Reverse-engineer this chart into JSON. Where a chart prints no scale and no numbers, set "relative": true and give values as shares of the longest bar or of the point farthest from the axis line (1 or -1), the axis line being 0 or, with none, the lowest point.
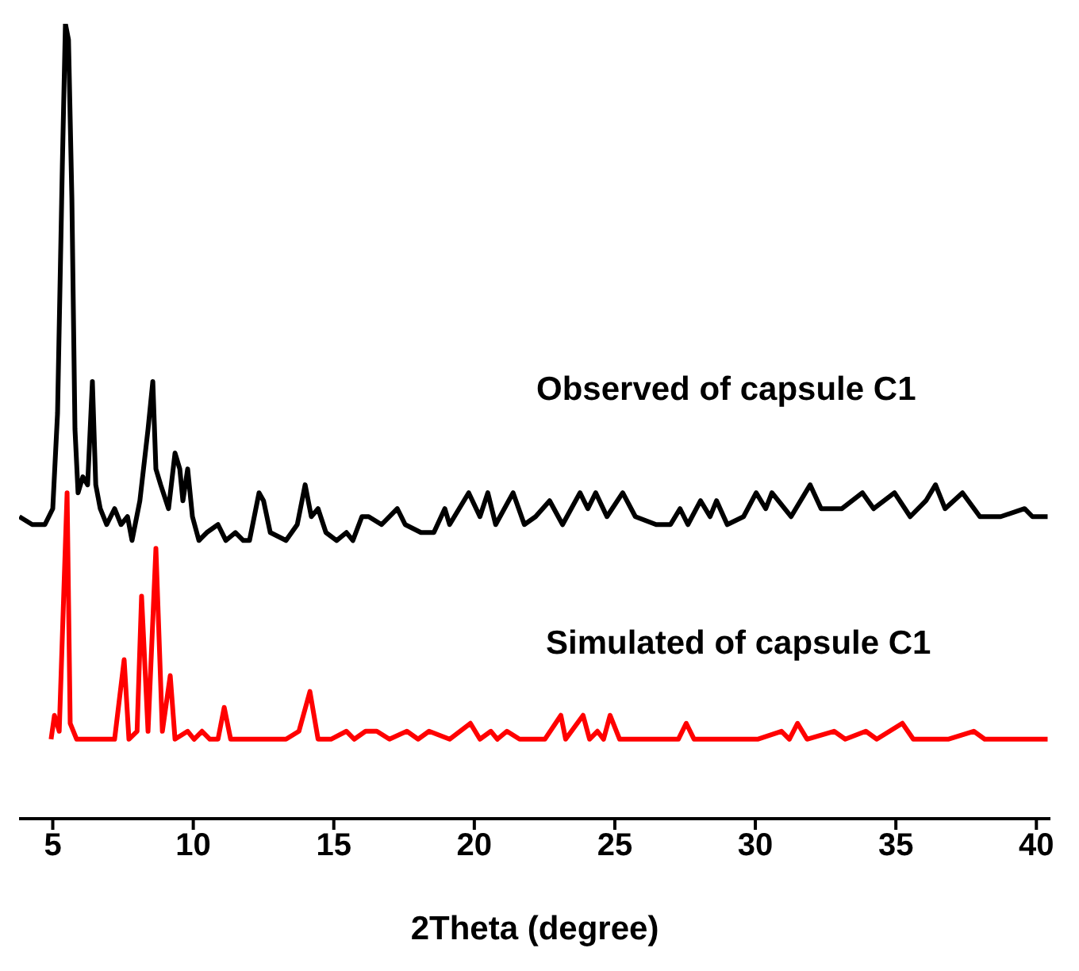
{
  "chart_data": {
    "type": "line",
    "relative": true,
    "xlabel": "2Theta (degree)",
    "xlim": [
      3.8,
      40.5
    ],
    "xticks": [
      5,
      10,
      15,
      20,
      25,
      30,
      35,
      40
    ],
    "marker": "none",
    "line_style": "solid",
    "series": [
      {
        "name": "Observed of capsule C1",
        "color": "#000000",
        "x": [
          3.81,
          4.27,
          4.72,
          5.0,
          5.17,
          5.34,
          5.45,
          5.56,
          5.68,
          5.79,
          5.9,
          6.07,
          6.24,
          6.41,
          6.53,
          6.69,
          6.92,
          7.2,
          7.43,
          7.66,
          7.82,
          8.1,
          8.39,
          8.56,
          8.67,
          8.84,
          9.12,
          9.35,
          9.52,
          9.63,
          9.8,
          9.97,
          10.2,
          10.48,
          10.88,
          11.16,
          11.5,
          11.78,
          12.0,
          12.34,
          12.5,
          12.74,
          13.3,
          13.7,
          13.98,
          14.2,
          14.44,
          14.72,
          15.1,
          15.45,
          15.68,
          16.0,
          16.24,
          16.7,
          17.26,
          17.54,
          18.1,
          18.56,
          18.95,
          19.12,
          19.8,
          20.2,
          20.48,
          20.76,
          21.38,
          21.78,
          22.18,
          22.68,
          23.14,
          23.76,
          24.04,
          24.32,
          24.72,
          25.28,
          25.73,
          26.47,
          26.98,
          27.32,
          27.6,
          28.05,
          28.39,
          28.62,
          29.0,
          29.58,
          30.03,
          30.37,
          30.59,
          31.27,
          31.95,
          32.34,
          33.08,
          33.81,
          34.21,
          34.95,
          35.51,
          36.07,
          36.41,
          36.75,
          37.37,
          37.99,
          38.73,
          39.58,
          39.86,
          40.4
        ],
        "values": [
          0.38,
          0.37,
          0.37,
          0.39,
          0.51,
          0.82,
          1.0,
          0.98,
          0.78,
          0.49,
          0.41,
          0.43,
          0.42,
          0.55,
          0.42,
          0.39,
          0.37,
          0.39,
          0.37,
          0.38,
          0.35,
          0.4,
          0.49,
          0.55,
          0.44,
          0.42,
          0.39,
          0.46,
          0.44,
          0.4,
          0.44,
          0.38,
          0.35,
          0.36,
          0.37,
          0.35,
          0.36,
          0.35,
          0.35,
          0.41,
          0.4,
          0.36,
          0.35,
          0.37,
          0.42,
          0.38,
          0.39,
          0.36,
          0.35,
          0.36,
          0.35,
          0.38,
          0.38,
          0.37,
          0.39,
          0.37,
          0.36,
          0.36,
          0.39,
          0.37,
          0.41,
          0.38,
          0.41,
          0.37,
          0.41,
          0.37,
          0.38,
          0.4,
          0.37,
          0.41,
          0.39,
          0.41,
          0.38,
          0.41,
          0.38,
          0.37,
          0.37,
          0.39,
          0.37,
          0.4,
          0.38,
          0.4,
          0.37,
          0.38,
          0.41,
          0.39,
          0.41,
          0.38,
          0.42,
          0.39,
          0.39,
          0.41,
          0.39,
          0.41,
          0.38,
          0.4,
          0.42,
          0.39,
          0.41,
          0.38,
          0.38,
          0.39,
          0.38,
          0.38
        ]
      },
      {
        "name": "Simulated of capsule C1",
        "color": "#ff0000",
        "x": [
          4.94,
          5.06,
          5.23,
          5.51,
          5.62,
          5.85,
          7.2,
          7.54,
          7.71,
          8.0,
          8.16,
          8.39,
          8.67,
          8.9,
          9.18,
          9.35,
          9.8,
          10.03,
          10.31,
          10.59,
          10.88,
          11.1,
          11.33,
          11.72,
          12.34,
          13.3,
          13.76,
          14.15,
          14.44,
          14.9,
          15.45,
          15.73,
          16.13,
          16.53,
          16.98,
          17.6,
          18.0,
          18.39,
          19.12,
          19.86,
          20.2,
          20.59,
          20.82,
          21.16,
          21.61,
          22.06,
          22.51,
          23.08,
          23.25,
          23.87,
          24.1,
          24.38,
          24.6,
          24.83,
          25.17,
          25.56,
          26.02,
          26.69,
          27.26,
          27.54,
          27.82,
          28.95,
          30.08,
          30.93,
          31.21,
          31.5,
          31.84,
          32.8,
          33.2,
          33.93,
          34.32,
          35.23,
          35.62,
          36.36,
          36.86,
          37.77,
          38.16,
          39.29,
          39.97,
          40.4
        ],
        "values": [
          0.1,
          0.13,
          0.11,
          0.41,
          0.12,
          0.1,
          0.1,
          0.2,
          0.1,
          0.11,
          0.28,
          0.11,
          0.34,
          0.11,
          0.18,
          0.1,
          0.11,
          0.1,
          0.11,
          0.1,
          0.1,
          0.14,
          0.1,
          0.1,
          0.1,
          0.1,
          0.11,
          0.16,
          0.1,
          0.1,
          0.11,
          0.1,
          0.11,
          0.11,
          0.1,
          0.11,
          0.1,
          0.11,
          0.1,
          0.12,
          0.1,
          0.11,
          0.1,
          0.11,
          0.1,
          0.1,
          0.1,
          0.13,
          0.1,
          0.13,
          0.1,
          0.11,
          0.1,
          0.13,
          0.1,
          0.1,
          0.1,
          0.1,
          0.1,
          0.12,
          0.1,
          0.1,
          0.1,
          0.11,
          0.1,
          0.12,
          0.1,
          0.11,
          0.1,
          0.11,
          0.1,
          0.12,
          0.1,
          0.1,
          0.1,
          0.11,
          0.1,
          0.1,
          0.1,
          0.1
        ]
      }
    ]
  }
}
